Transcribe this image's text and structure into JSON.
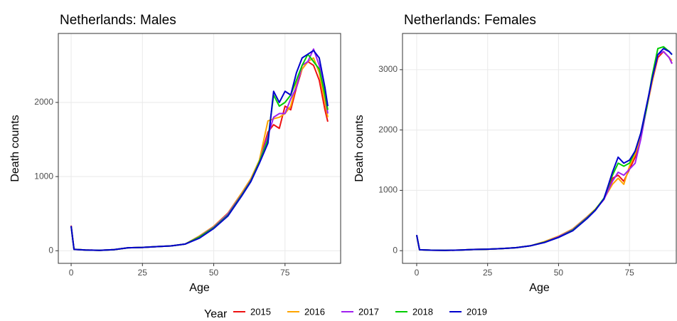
{
  "chart_data": [
    {
      "type": "line",
      "title": "Netherlands: Males",
      "x_label": "Age",
      "y_label": "Death counts",
      "legend_title": "Year",
      "x": [
        0,
        1,
        5,
        10,
        15,
        20,
        25,
        30,
        35,
        40,
        45,
        50,
        55,
        60,
        63,
        66,
        69,
        71,
        73,
        75,
        77,
        79,
        81,
        83,
        85,
        87,
        89,
        90
      ],
      "series": [
        {
          "name": "2015",
          "color": "#ee1111",
          "values": [
            340,
            20,
            10,
            5,
            15,
            40,
            45,
            55,
            65,
            90,
            190,
            320,
            500,
            780,
            950,
            1200,
            1600,
            1700,
            1650,
            1950,
            1900,
            2200,
            2450,
            2550,
            2500,
            2300,
            1900,
            1740
          ]
        },
        {
          "name": "2016",
          "color": "#ffa500",
          "values": [
            330,
            20,
            10,
            5,
            15,
            40,
            45,
            55,
            65,
            90,
            200,
            330,
            510,
            790,
            970,
            1220,
            1750,
            1780,
            1800,
            1850,
            1950,
            2250,
            2450,
            2550,
            2600,
            2400,
            2000,
            1800
          ]
        },
        {
          "name": "2017",
          "color": "#a020f0",
          "values": [
            335,
            18,
            10,
            6,
            15,
            40,
            45,
            55,
            65,
            90,
            190,
            320,
            500,
            770,
            950,
            1200,
            1550,
            1800,
            1850,
            1850,
            2050,
            2200,
            2500,
            2550,
            2720,
            2500,
            2100,
            1850
          ]
        },
        {
          "name": "2018",
          "color": "#00cd00",
          "values": [
            330,
            20,
            10,
            5,
            15,
            40,
            45,
            55,
            65,
            90,
            185,
            310,
            480,
            760,
            940,
            1200,
            1500,
            2100,
            1950,
            2000,
            2100,
            2300,
            2500,
            2650,
            2550,
            2450,
            2100,
            1900
          ]
        },
        {
          "name": "2019",
          "color": "#0000cd",
          "values": [
            330,
            18,
            10,
            5,
            15,
            40,
            45,
            55,
            65,
            90,
            170,
            300,
            470,
            750,
            930,
            1180,
            1450,
            2150,
            2000,
            2150,
            2100,
            2400,
            2600,
            2650,
            2700,
            2600,
            2200,
            1950
          ]
        }
      ],
      "xlim": [
        -4.5,
        94.5
      ],
      "ylim": [
        -170,
        2930
      ],
      "xticks": [
        0,
        25,
        50,
        75
      ],
      "yticks": [
        0,
        1000,
        2000
      ],
      "grid": true
    },
    {
      "type": "line",
      "title": "Netherlands: Females",
      "x_label": "Age",
      "y_label": "Death counts",
      "x": [
        0,
        1,
        5,
        10,
        15,
        20,
        25,
        30,
        35,
        40,
        45,
        50,
        55,
        60,
        63,
        66,
        69,
        71,
        73,
        75,
        77,
        79,
        81,
        83,
        85,
        87,
        89,
        90
      ],
      "series": [
        {
          "name": "2015",
          "color": "#ee1111",
          "values": [
            260,
            15,
            8,
            5,
            10,
            20,
            25,
            35,
            50,
            80,
            140,
            230,
            350,
            550,
            680,
            850,
            1200,
            1250,
            1150,
            1350,
            1550,
            1900,
            2350,
            2800,
            3200,
            3300,
            3200,
            3100
          ]
        },
        {
          "name": "2016",
          "color": "#ffa500",
          "values": [
            255,
            15,
            8,
            5,
            10,
            20,
            25,
            35,
            50,
            80,
            150,
            240,
            360,
            560,
            690,
            860,
            1100,
            1200,
            1100,
            1400,
            1600,
            1900,
            2350,
            2800,
            3250,
            3300,
            3200,
            3150
          ]
        },
        {
          "name": "2017",
          "color": "#a020f0",
          "values": [
            260,
            15,
            8,
            5,
            10,
            20,
            25,
            35,
            50,
            80,
            140,
            230,
            350,
            550,
            680,
            850,
            1150,
            1300,
            1250,
            1350,
            1450,
            1850,
            2350,
            2850,
            3250,
            3300,
            3200,
            3100
          ]
        },
        {
          "name": "2018",
          "color": "#00cd00",
          "values": [
            255,
            15,
            8,
            5,
            10,
            20,
            25,
            35,
            50,
            80,
            140,
            220,
            340,
            540,
            680,
            870,
            1250,
            1450,
            1400,
            1450,
            1650,
            1950,
            2350,
            2900,
            3350,
            3380,
            3300,
            3250
          ]
        },
        {
          "name": "2019",
          "color": "#0000cd",
          "values": [
            260,
            15,
            8,
            5,
            10,
            20,
            25,
            35,
            50,
            80,
            135,
            220,
            330,
            530,
            670,
            860,
            1300,
            1550,
            1450,
            1500,
            1650,
            1950,
            2400,
            2850,
            3250,
            3350,
            3300,
            3250
          ]
        }
      ],
      "xlim": [
        -5,
        91.5
      ],
      "ylim": [
        -210,
        3600
      ],
      "xticks": [
        0,
        25,
        50,
        75
      ],
      "yticks": [
        0,
        1000,
        2000,
        3000
      ],
      "grid": true
    }
  ]
}
